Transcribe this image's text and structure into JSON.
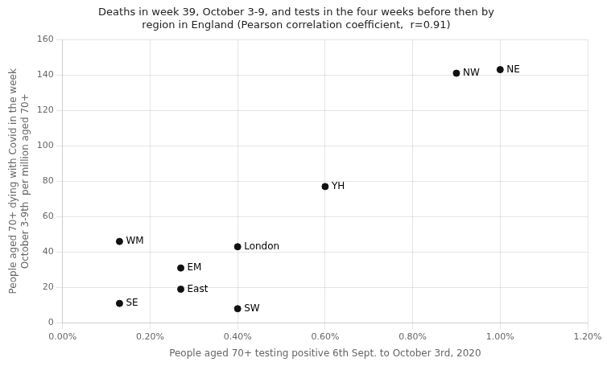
{
  "chart_data": {
    "type": "scatter",
    "title": "Deaths in week 39, October 3-9, and tests in the four weeks before then by\nregion in England (Pearson correlation coefficient,  r=0.91)",
    "xlabel": "People aged 70+ testing positive 6th Sept. to October 3rd, 2020",
    "ylabel": "People aged 70+ dying with Covid in the week\nOctober 3-9th  per million aged 70+",
    "x": [
      0.009,
      0.01,
      0.006,
      0.0013,
      0.004,
      0.0027,
      0.0027,
      0.0013,
      0.004
    ],
    "values": [
      141,
      143,
      77,
      46,
      43,
      31,
      19,
      11,
      8
    ],
    "annotations": [
      "NW",
      "NE",
      "YH",
      "WM",
      "London",
      "EM",
      "East",
      "SE",
      "SW"
    ],
    "color": "#111111",
    "xlim": [
      0.0,
      0.012
    ],
    "ylim": [
      0,
      160
    ],
    "xticks": [
      {
        "value": 0.0,
        "label": "0.00%"
      },
      {
        "value": 0.002,
        "label": "0.20%"
      },
      {
        "value": 0.004,
        "label": "0.40%"
      },
      {
        "value": 0.006,
        "label": "0.60%"
      },
      {
        "value": 0.008,
        "label": "0.80%"
      },
      {
        "value": 0.01,
        "label": "1.00%"
      },
      {
        "value": 0.012,
        "label": "1.20%"
      }
    ],
    "yticks": [
      0,
      20,
      40,
      60,
      80,
      100,
      120,
      140,
      160
    ],
    "grid": true
  }
}
